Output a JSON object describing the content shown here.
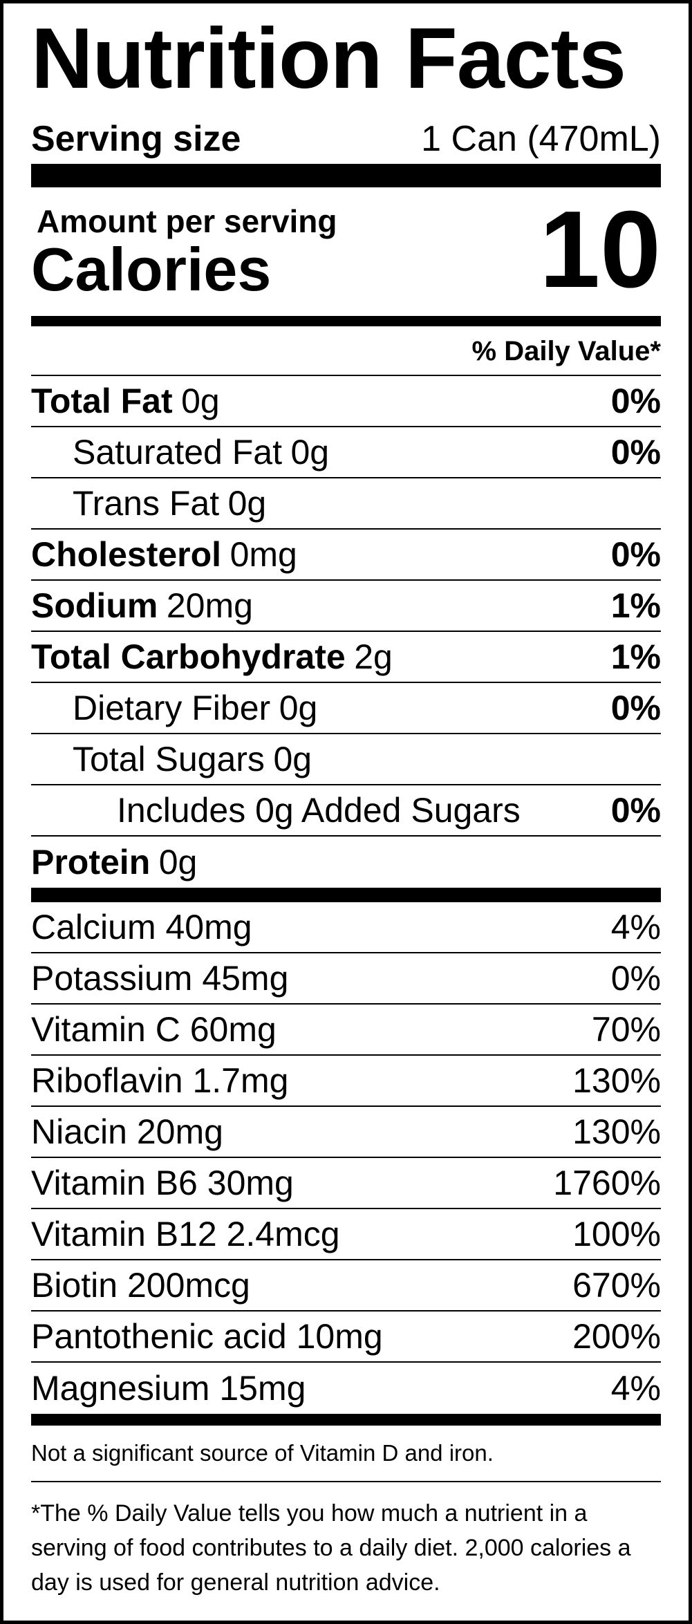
{
  "header": {
    "title": "Nutrition Facts",
    "serving_label": "Serving size",
    "serving_value": "1 Can (470mL)"
  },
  "calories": {
    "amount_label": "Amount per serving",
    "label": "Calories",
    "value": 10
  },
  "dv_header": "% Daily Value*",
  "nutrients": [
    {
      "name": "Total Fat",
      "amount": "0g",
      "dv": "0%"
    },
    {
      "name": "Saturated Fat",
      "amount": "0g",
      "dv": "0%"
    },
    {
      "name": "Trans Fat",
      "amount": "0g"
    },
    {
      "name": "Cholesterol",
      "amount": "0mg",
      "dv": "0%"
    },
    {
      "name": "Sodium",
      "amount": "20mg",
      "dv": "1%"
    },
    {
      "name": "Total Carbohydrate",
      "amount": "2g",
      "dv": "1%"
    },
    {
      "name": "Dietary Fiber",
      "amount": "0g",
      "dv": "0%"
    },
    {
      "name": "Total Sugars",
      "amount": "0g"
    },
    {
      "name": "Includes 0g Added Sugars",
      "dv": "0%"
    },
    {
      "name": "Protein",
      "amount": "0g"
    }
  ],
  "vitamins": [
    {
      "name": "Calcium 40mg",
      "dv": "4%"
    },
    {
      "name": "Potassium 45mg",
      "dv": "0%"
    },
    {
      "name": "Vitamin C 60mg",
      "dv": "70%"
    },
    {
      "name": "Riboflavin 1.7mg",
      "dv": "130%"
    },
    {
      "name": "Niacin 20mg",
      "dv": "130%"
    },
    {
      "name": "Vitamin B6 30mg",
      "dv": "1760%"
    },
    {
      "name": "Vitamin B12 2.4mcg",
      "dv": "100%"
    },
    {
      "name": "Biotin 200mcg",
      "dv": "670%"
    },
    {
      "name": "Pantothenic acid 10mg",
      "dv": "200%"
    },
    {
      "name": "Magnesium 15mg",
      "dv": "4%"
    }
  ],
  "footer": {
    "note": "Not a significant source of Vitamin D and iron.",
    "footnote": "*The % Daily Value tells you how much a nutrient in a serving of food contributes to a daily diet. 2,000 calories a day is used for general nutrition advice."
  }
}
